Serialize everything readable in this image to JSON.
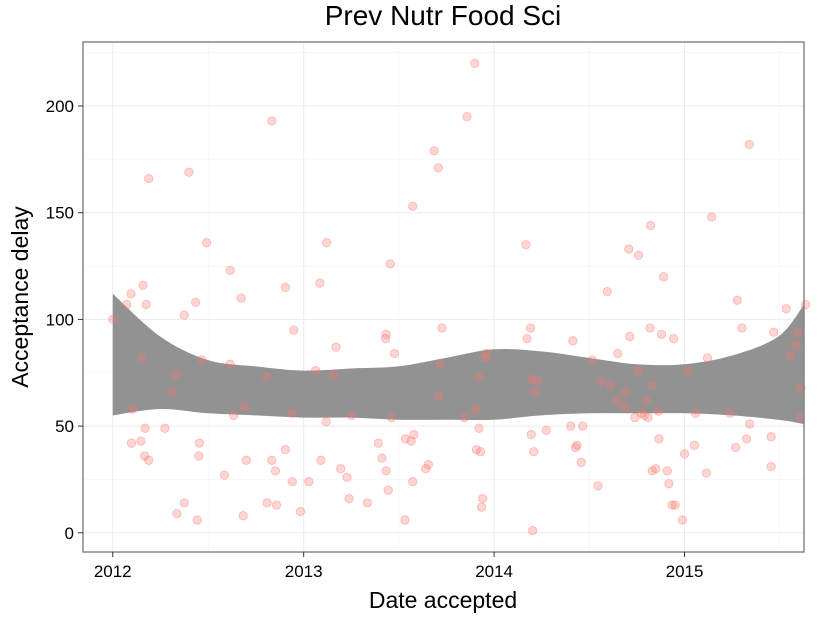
{
  "chart_data": {
    "type": "scatter",
    "title": "Prev Nutr Food Sci",
    "xlabel": "Date accepted",
    "ylabel": "Acceptance delay",
    "x_ticks": [
      "2012",
      "2013",
      "2014",
      "2015"
    ],
    "y_ticks": [
      "0",
      "50",
      "100",
      "150",
      "200"
    ],
    "xlim": [
      "2011-11-05",
      "2015-08-18"
    ],
    "ylim": [
      -9,
      230
    ],
    "grid": true,
    "point_color": "#F8766D",
    "ribbon_color": "#8c8c8c",
    "points": [
      [
        "2012-01-01",
        100
      ],
      [
        "2012-01-28",
        107
      ],
      [
        "2012-02-05",
        112
      ],
      [
        "2012-02-08",
        58
      ],
      [
        "2012-02-06",
        42
      ],
      [
        "2012-02-24",
        43
      ],
      [
        "2012-02-26",
        82
      ],
      [
        "2012-02-28",
        116
      ],
      [
        "2012-03-05",
        107
      ],
      [
        "2012-03-03",
        49
      ],
      [
        "2012-03-02",
        36
      ],
      [
        "2012-03-10",
        34
      ],
      [
        "2012-03-10",
        166
      ],
      [
        "2012-04-10",
        49
      ],
      [
        "2012-04-25",
        66
      ],
      [
        "2012-05-01",
        74
      ],
      [
        "2012-05-03",
        9
      ],
      [
        "2012-05-17",
        14
      ],
      [
        "2012-05-17",
        102
      ],
      [
        "2012-05-26",
        169
      ],
      [
        "2012-06-08",
        108
      ],
      [
        "2012-06-11",
        6
      ],
      [
        "2012-06-15",
        42
      ],
      [
        "2012-06-14",
        36
      ],
      [
        "2012-06-20",
        81
      ],
      [
        "2012-06-29",
        136
      ],
      [
        "2012-08-02",
        27
      ],
      [
        "2012-08-13",
        123
      ],
      [
        "2012-08-13",
        79
      ],
      [
        "2012-08-20",
        55
      ],
      [
        "2012-09-03",
        110
      ],
      [
        "2012-09-07",
        8
      ],
      [
        "2012-09-10",
        59
      ],
      [
        "2012-09-13",
        34
      ],
      [
        "2012-10-22",
        73
      ],
      [
        "2012-10-23",
        14
      ],
      [
        "2012-11-01",
        34
      ],
      [
        "2012-11-01",
        193
      ],
      [
        "2012-11-08",
        29
      ],
      [
        "2012-11-10",
        13
      ],
      [
        "2012-11-27",
        39
      ],
      [
        "2012-11-27",
        115
      ],
      [
        "2012-12-09",
        56
      ],
      [
        "2012-12-13",
        95
      ],
      [
        "2012-12-10",
        24
      ],
      [
        "2012-12-26",
        10
      ],
      [
        "2013-01-11",
        24
      ],
      [
        "2013-01-24",
        76
      ],
      [
        "2013-02-01",
        117
      ],
      [
        "2013-02-03",
        34
      ],
      [
        "2013-02-13",
        52
      ],
      [
        "2013-02-14",
        136
      ],
      [
        "2013-02-27",
        74
      ],
      [
        "2013-03-04",
        87
      ],
      [
        "2013-03-13",
        30
      ],
      [
        "2013-03-25",
        26
      ],
      [
        "2013-03-29",
        16
      ],
      [
        "2013-04-03",
        55
      ],
      [
        "2013-05-03",
        14
      ],
      [
        "2013-05-24",
        42
      ],
      [
        "2013-05-31",
        35
      ],
      [
        "2013-06-07",
        91
      ],
      [
        "2013-06-08",
        93
      ],
      [
        "2013-06-08",
        29
      ],
      [
        "2013-06-12",
        20
      ],
      [
        "2013-06-16",
        126
      ],
      [
        "2013-06-18",
        54
      ],
      [
        "2013-06-24",
        84
      ],
      [
        "2013-07-14",
        6
      ],
      [
        "2013-07-15",
        44
      ],
      [
        "2013-07-29",
        24
      ],
      [
        "2013-07-29",
        153
      ],
      [
        "2013-07-31",
        46
      ],
      [
        "2013-07-26",
        43
      ],
      [
        "2013-08-23",
        30
      ],
      [
        "2013-08-28",
        32
      ],
      [
        "2013-09-08",
        179
      ],
      [
        "2013-09-16",
        171
      ],
      [
        "2013-09-19",
        79
      ],
      [
        "2013-09-23",
        96
      ],
      [
        "2013-09-17",
        64
      ],
      [
        "2013-11-05",
        54
      ],
      [
        "2013-11-10",
        195
      ],
      [
        "2013-11-25",
        220
      ],
      [
        "2013-11-27",
        58
      ],
      [
        "2013-11-28",
        39
      ],
      [
        "2013-12-03",
        49
      ],
      [
        "2013-12-03",
        73
      ],
      [
        "2013-12-06",
        38
      ],
      [
        "2013-12-08",
        12
      ],
      [
        "2013-12-10",
        16
      ],
      [
        "2013-12-16",
        82
      ],
      [
        "2013-12-17",
        84
      ],
      [
        "2014-03-03",
        135
      ],
      [
        "2014-03-05",
        91
      ],
      [
        "2014-03-12",
        96
      ],
      [
        "2014-03-14",
        72
      ],
      [
        "2014-03-13",
        46
      ],
      [
        "2014-03-16",
        1
      ],
      [
        "2014-03-18",
        38
      ],
      [
        "2014-03-20",
        66
      ],
      [
        "2014-03-26",
        71
      ],
      [
        "2014-04-11",
        48
      ],
      [
        "2014-05-28",
        50
      ],
      [
        "2014-06-01",
        90
      ],
      [
        "2014-06-06",
        40
      ],
      [
        "2014-06-09",
        41
      ],
      [
        "2014-06-17",
        33
      ],
      [
        "2014-06-20",
        50
      ],
      [
        "2014-07-08",
        81
      ],
      [
        "2014-07-19",
        22
      ],
      [
        "2014-07-25",
        71
      ],
      [
        "2014-08-06",
        113
      ],
      [
        "2014-08-11",
        69
      ],
      [
        "2014-08-26",
        84
      ],
      [
        "2014-08-25",
        62
      ],
      [
        "2014-09-09",
        59
      ],
      [
        "2014-09-10",
        66
      ],
      [
        "2014-09-16",
        133
      ],
      [
        "2014-09-18",
        92
      ],
      [
        "2014-09-28",
        54
      ],
      [
        "2014-10-05",
        130
      ],
      [
        "2014-10-05",
        76
      ],
      [
        "2014-10-10",
        56
      ],
      [
        "2014-10-16",
        55
      ],
      [
        "2014-10-20",
        62
      ],
      [
        "2014-10-23",
        54
      ],
      [
        "2014-10-27",
        96
      ],
      [
        "2014-10-28",
        144
      ],
      [
        "2014-10-31",
        69
      ],
      [
        "2014-10-31",
        29
      ],
      [
        "2014-11-07",
        30
      ],
      [
        "2014-11-12",
        57
      ],
      [
        "2014-11-13",
        44
      ],
      [
        "2014-11-18",
        93
      ],
      [
        "2014-11-22",
        120
      ],
      [
        "2014-11-29",
        29
      ],
      [
        "2014-12-02",
        23
      ],
      [
        "2014-12-08",
        13
      ],
      [
        "2014-12-11",
        91
      ],
      [
        "2014-12-14",
        13
      ],
      [
        "2014-12-28",
        6
      ],
      [
        "2015-01-01",
        37
      ],
      [
        "2015-01-07",
        76
      ],
      [
        "2015-01-20",
        41
      ],
      [
        "2015-01-22",
        56
      ],
      [
        "2015-02-12",
        28
      ],
      [
        "2015-02-14",
        82
      ],
      [
        "2015-02-22",
        148
      ],
      [
        "2015-03-29",
        56
      ],
      [
        "2015-04-09",
        40
      ],
      [
        "2015-04-12",
        109
      ],
      [
        "2015-04-21",
        96
      ],
      [
        "2015-04-30",
        44
      ],
      [
        "2015-05-05",
        182
      ],
      [
        "2015-05-06",
        51
      ],
      [
        "2015-06-16",
        45
      ],
      [
        "2015-06-16",
        31
      ],
      [
        "2015-06-21",
        94
      ],
      [
        "2015-07-15",
        105
      ],
      [
        "2015-07-23",
        83
      ],
      [
        "2015-08-06",
        94
      ],
      [
        "2015-08-02",
        88
      ],
      [
        "2015-08-11",
        54
      ],
      [
        "2015-08-12",
        68
      ],
      [
        "2015-08-21",
        107
      ]
    ],
    "smooth_band": {
      "x": [
        "2012-01-01",
        "2012-04-01",
        "2012-07-01",
        "2012-10-01",
        "2013-01-01",
        "2013-04-01",
        "2013-07-01",
        "2013-10-01",
        "2014-01-01",
        "2014-04-01",
        "2014-07-01",
        "2014-10-01",
        "2015-01-01",
        "2015-04-01",
        "2015-06-30",
        "2015-08-18"
      ],
      "upper": [
        112,
        92,
        81,
        78,
        76,
        77,
        78,
        82,
        86,
        85,
        82,
        79,
        79,
        83,
        92,
        107
      ],
      "lower": [
        55,
        58,
        56,
        55,
        54,
        54,
        53,
        53,
        53,
        55,
        56,
        56,
        56,
        55,
        53,
        51
      ]
    }
  }
}
